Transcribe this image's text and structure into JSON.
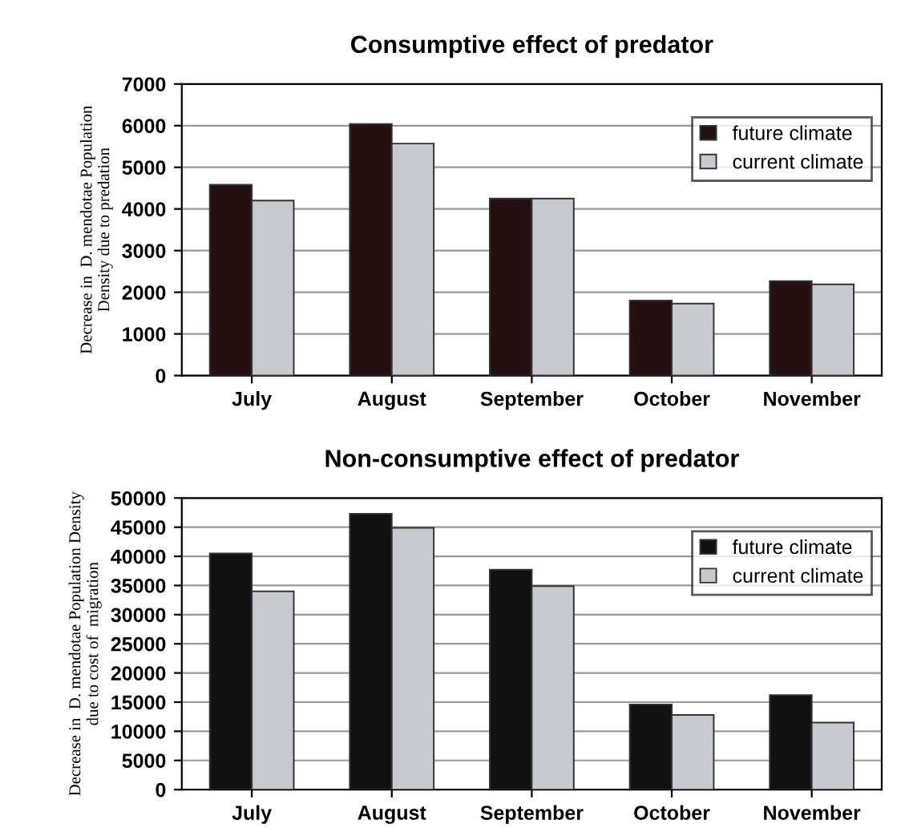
{
  "chart_data": [
    {
      "type": "bar",
      "title": "Consumptive effect of predator",
      "ylabel": "Decrease in  D. mendotae Population\nDensity due to predation",
      "categories": [
        "July",
        "August",
        "September",
        "October",
        "November"
      ],
      "series": [
        {
          "name": "future climate",
          "color": "#241010",
          "values": [
            4580,
            6040,
            4250,
            1800,
            2270
          ]
        },
        {
          "name": "current climate",
          "color": "#c8c8d0",
          "values": [
            4200,
            5570,
            4250,
            1730,
            2190
          ]
        }
      ],
      "ylim": [
        0,
        7000
      ],
      "yticks": [
        0,
        1000,
        2000,
        3000,
        4000,
        5000,
        6000,
        7000
      ],
      "grid": "y",
      "legend": "top right"
    },
    {
      "type": "bar",
      "title": "Non-consumptive effect of predator",
      "ylabel": "Decrease in  D. mendotae Population Density\ndue to cost of  migration",
      "categories": [
        "July",
        "August",
        "September",
        "October",
        "November"
      ],
      "series": [
        {
          "name": "future climate",
          "color": "#111111",
          "values": [
            40500,
            47300,
            37700,
            14600,
            16200
          ]
        },
        {
          "name": "current climate",
          "color": "#c8c8d0",
          "values": [
            34000,
            44900,
            34900,
            12800,
            11500
          ]
        }
      ],
      "ylim": [
        0,
        50000
      ],
      "yticks": [
        0,
        5000,
        10000,
        15000,
        20000,
        25000,
        30000,
        35000,
        40000,
        45000,
        50000
      ],
      "grid": "y",
      "legend": "top right"
    }
  ]
}
